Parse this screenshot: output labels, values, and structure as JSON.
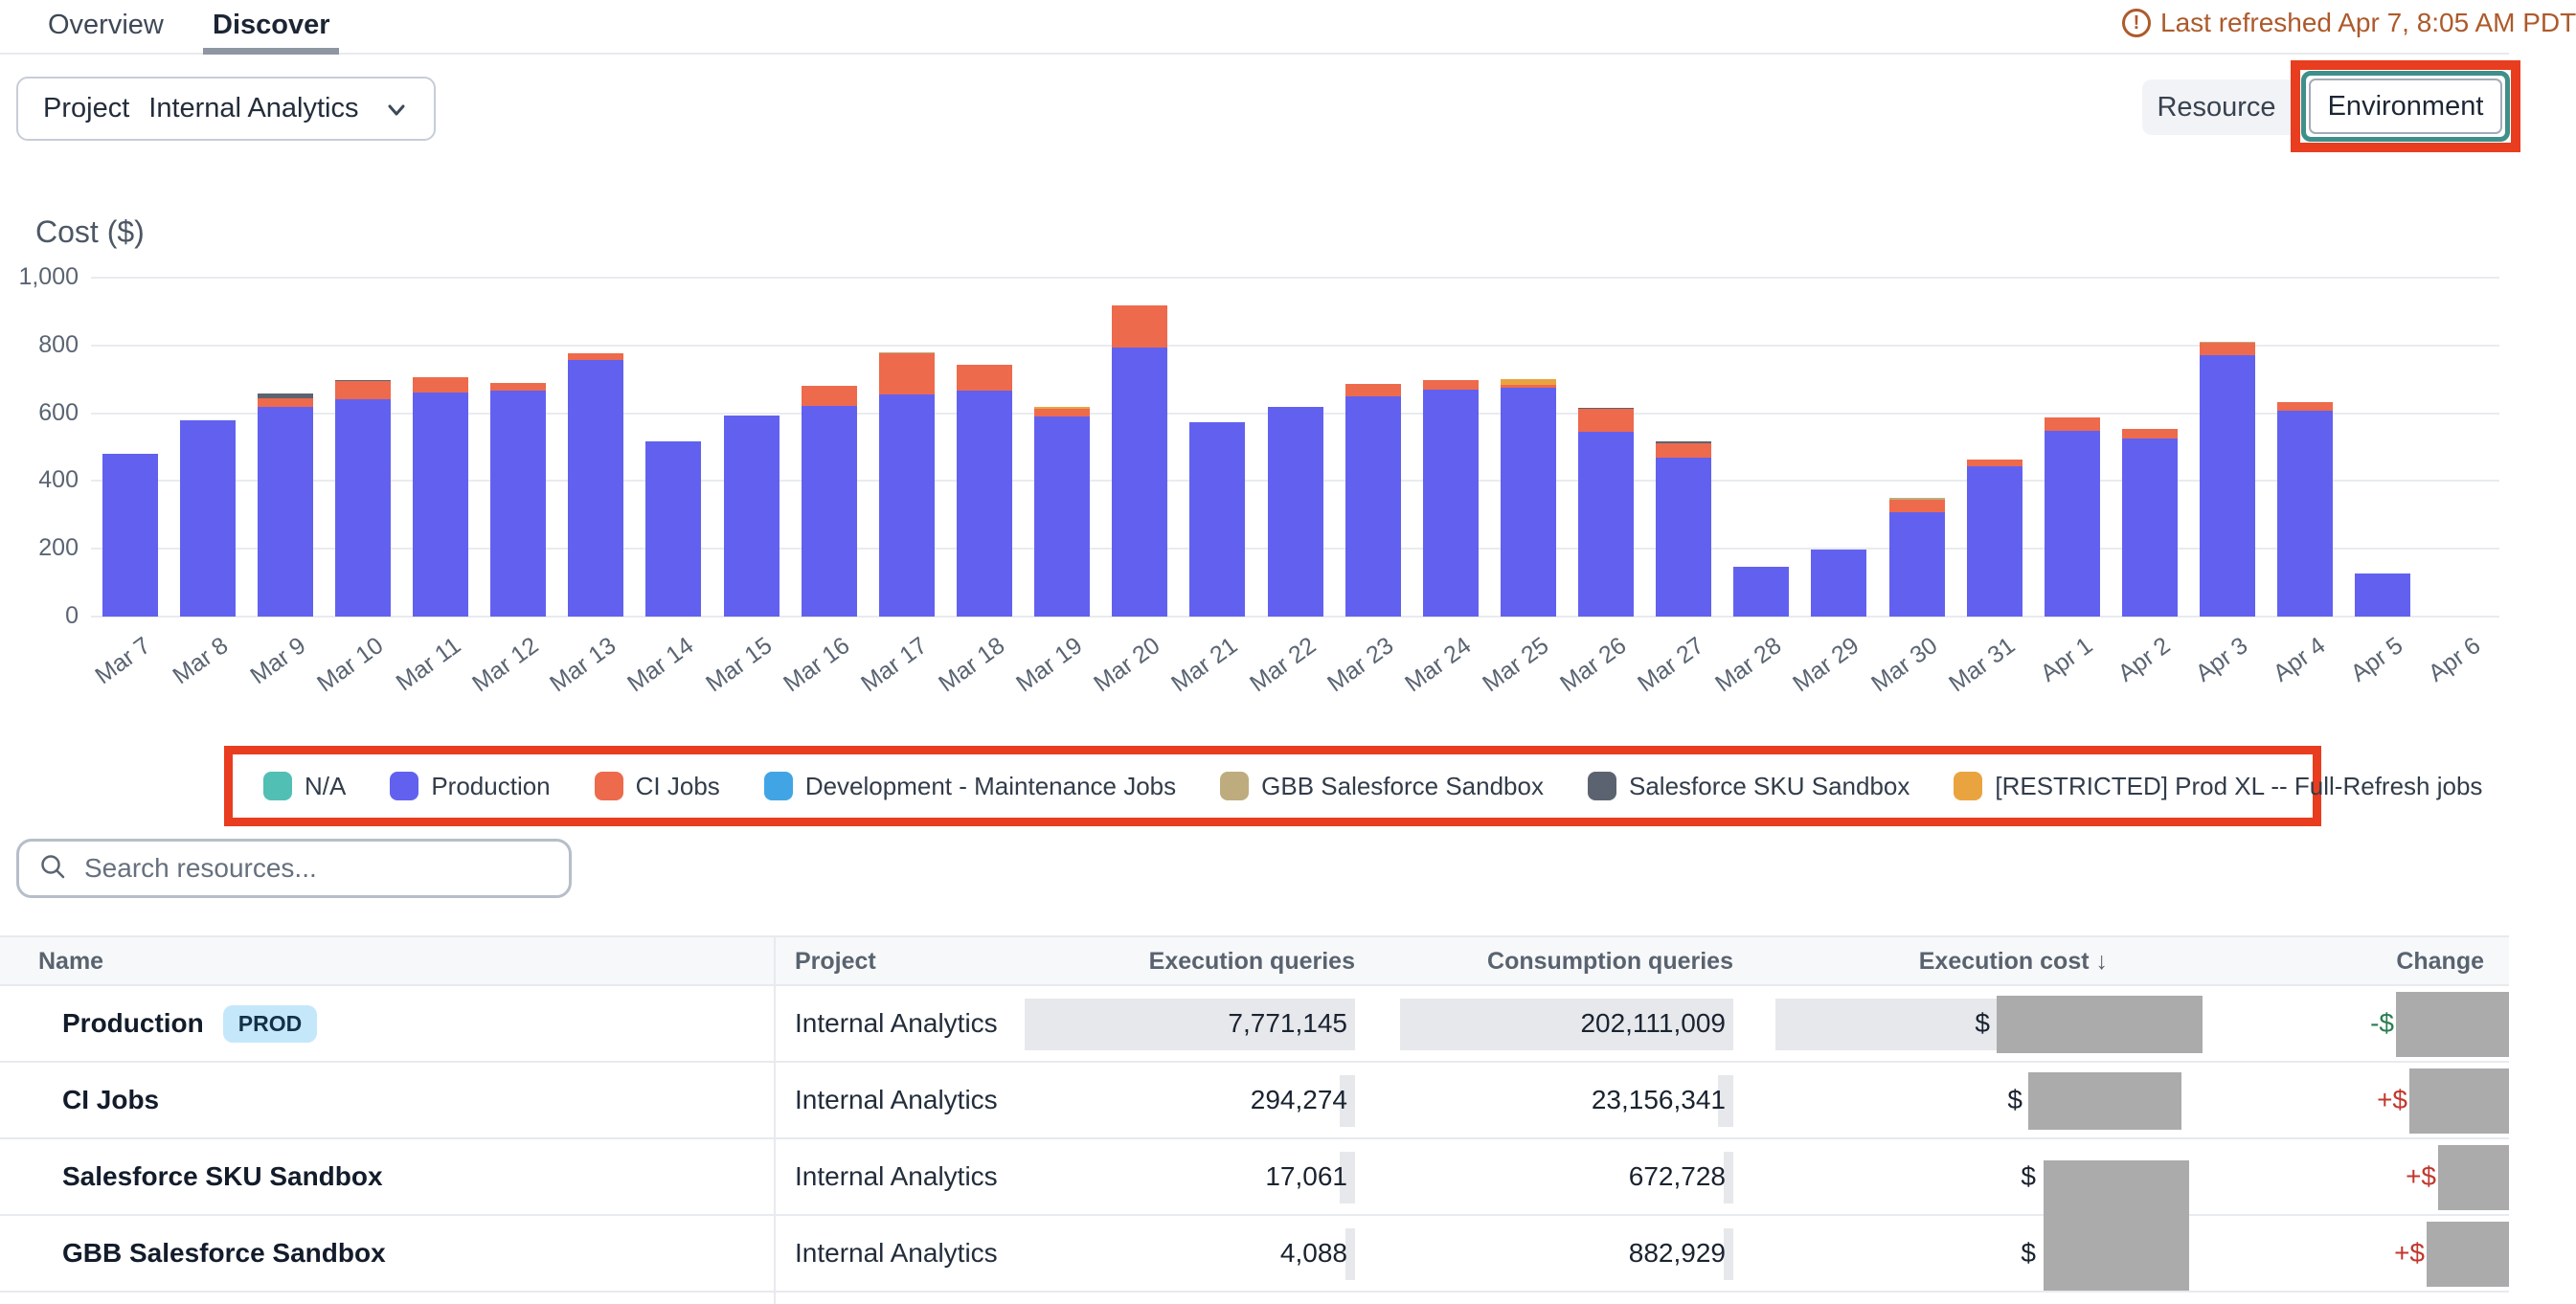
{
  "header": {
    "tabs": [
      {
        "label": "Overview",
        "active": false
      },
      {
        "label": "Discover",
        "active": true
      }
    ],
    "refresh_notice": "Last refreshed Apr 7, 8:05 AM PDT",
    "refresh_color": "#ad5a2b"
  },
  "controls": {
    "project_filter": {
      "label": "Project",
      "value": "Internal Analytics"
    },
    "group_by": {
      "options": [
        "Resource",
        "Environment"
      ],
      "selected": "Environment"
    }
  },
  "annotation_color": "#e93d1f",
  "chart_data": {
    "type": "bar",
    "stacked": true,
    "title": "Cost ($)",
    "ylabel": "Cost ($)",
    "ylim": [
      0,
      1000
    ],
    "yticks": [
      0,
      200,
      400,
      600,
      800,
      1000
    ],
    "grid": true,
    "legend_position": "bottom",
    "categories": [
      "Mar 7",
      "Mar 8",
      "Mar 9",
      "Mar 10",
      "Mar 11",
      "Mar 12",
      "Mar 13",
      "Mar 14",
      "Mar 15",
      "Mar 16",
      "Mar 17",
      "Mar 18",
      "Mar 19",
      "Mar 20",
      "Mar 21",
      "Mar 22",
      "Mar 23",
      "Mar 24",
      "Mar 25",
      "Mar 26",
      "Mar 27",
      "Mar 28",
      "Mar 29",
      "Mar 30",
      "Mar 31",
      "Apr 1",
      "Apr 2",
      "Apr 3",
      "Apr 4",
      "Apr 5",
      "Apr 6"
    ],
    "series": [
      {
        "name": "N/A",
        "color": "#52bfb4",
        "values": [
          0,
          0,
          0,
          0,
          0,
          0,
          0,
          0,
          0,
          0,
          0,
          0,
          0,
          0,
          0,
          0,
          0,
          0,
          0,
          0,
          0,
          0,
          0,
          0,
          0,
          0,
          0,
          0,
          0,
          0,
          0
        ]
      },
      {
        "name": "Production",
        "color": "#6261ef",
        "values": [
          480,
          580,
          620,
          640,
          660,
          668,
          758,
          518,
          592,
          622,
          655,
          666,
          590,
          795,
          574,
          620,
          650,
          670,
          676,
          546,
          470,
          146,
          199,
          308,
          444,
          548,
          526,
          772,
          606,
          128,
          0
        ]
      },
      {
        "name": "CI Jobs",
        "color": "#ed6a4c",
        "values": [
          0,
          0,
          25,
          54,
          45,
          20,
          18,
          0,
          0,
          58,
          122,
          76,
          22,
          122,
          0,
          0,
          36,
          28,
          8,
          66,
          42,
          0,
          0,
          38,
          20,
          40,
          28,
          36,
          26,
          0,
          0
        ]
      },
      {
        "name": "Development - Maintenance Jobs",
        "color": "#41a5e5",
        "values": [
          0,
          0,
          0,
          0,
          0,
          0,
          0,
          0,
          0,
          0,
          0,
          0,
          0,
          0,
          0,
          0,
          0,
          0,
          0,
          0,
          0,
          0,
          0,
          0,
          0,
          0,
          0,
          0,
          0,
          0,
          0
        ]
      },
      {
        "name": "GBB Salesforce Sandbox",
        "color": "#beac7e",
        "values": [
          0,
          0,
          0,
          0,
          0,
          0,
          0,
          0,
          0,
          0,
          4,
          0,
          0,
          0,
          0,
          0,
          0,
          0,
          0,
          0,
          0,
          0,
          0,
          5,
          0,
          0,
          0,
          4,
          0,
          0,
          0
        ]
      },
      {
        "name": "Salesforce SKU Sandbox",
        "color": "#5c6370",
        "values": [
          0,
          0,
          13,
          4,
          0,
          0,
          0,
          0,
          0,
          0,
          0,
          0,
          0,
          0,
          0,
          0,
          0,
          0,
          0,
          5,
          4,
          0,
          0,
          0,
          0,
          0,
          0,
          0,
          0,
          0,
          0
        ]
      },
      {
        "name": "[RESTRICTED] Prod XL -- Full-Refresh jobs",
        "color": "#e9a440",
        "values": [
          0,
          0,
          0,
          0,
          0,
          0,
          0,
          0,
          0,
          0,
          0,
          0,
          8,
          0,
          0,
          0,
          0,
          0,
          16,
          0,
          0,
          0,
          0,
          0,
          0,
          0,
          0,
          0,
          0,
          0,
          0
        ]
      }
    ]
  },
  "search": {
    "placeholder": "Search resources..."
  },
  "table": {
    "columns": [
      "Name",
      "Project",
      "Execution queries",
      "Consumption queries",
      "Execution cost",
      "Change"
    ],
    "sort": {
      "column": "Execution cost",
      "direction": "desc",
      "arrow": "↓"
    },
    "rows": [
      {
        "name": "Production",
        "badge": "PROD",
        "project": "Internal Analytics",
        "execution_queries": "7,771,145",
        "consumption_queries": "202,111,009",
        "execution_cost_prefix": "$",
        "execution_cost_redacted": true,
        "change_prefix": "-$",
        "change_redacted": true,
        "change_direction": "down"
      },
      {
        "name": "CI Jobs",
        "badge": null,
        "project": "Internal Analytics",
        "execution_queries": "294,274",
        "consumption_queries": "23,156,341",
        "execution_cost_prefix": "$",
        "execution_cost_redacted": true,
        "change_prefix": "+$",
        "change_redacted": true,
        "change_direction": "up"
      },
      {
        "name": "Salesforce SKU Sandbox",
        "badge": null,
        "project": "Internal Analytics",
        "execution_queries": "17,061",
        "consumption_queries": "672,728",
        "execution_cost_prefix": "$",
        "execution_cost_redacted": true,
        "change_prefix": "+$",
        "change_redacted": true,
        "change_direction": "up"
      },
      {
        "name": "GBB Salesforce Sandbox",
        "badge": null,
        "project": "Internal Analytics",
        "execution_queries": "4,088",
        "consumption_queries": "882,929",
        "execution_cost_prefix": "$",
        "execution_cost_redacted": true,
        "change_prefix": "+$",
        "change_redacted": true,
        "change_direction": "up"
      }
    ],
    "change_colors": {
      "down": "#2a7e52",
      "up": "#c2382e"
    }
  }
}
